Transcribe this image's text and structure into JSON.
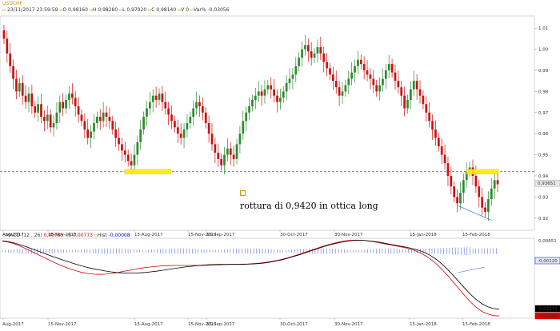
{
  "header": {
    "symbol": "USDCHF",
    "date_time": "23/11/2017 23:59:59",
    "open_label": "O",
    "open": "0,98160",
    "high_label": "H",
    "high": "0,98280",
    "low_label": "L",
    "low": "0,97920",
    "close_label": "C",
    "close": "0,98140",
    "vol_label": "V",
    "vol": "0",
    "varpct_label": "Var%",
    "varpct": "-0,03056"
  },
  "annotation": {
    "text": "rottura di 0,9420 in ottica long"
  },
  "macd_header": {
    "name": "MACD",
    "params": "(12 , 26)",
    "v1": "0,00785",
    "s_label": "S",
    "v2": "0,00773",
    "hist_label": "Hist",
    "v3": "-0,00008"
  },
  "price_axis": {
    "ticks": [
      "1,01",
      "1,00",
      "0,99",
      "0,98",
      "0,97",
      "0,96",
      "0,95",
      "0,94",
      "0,93",
      "0,92"
    ],
    "last_label": "0,93651"
  },
  "macd_axis": {
    "top": "0,00651",
    "hist_label": "-0,00120",
    "macd_label": "-0,02571",
    "signal_label": "-0,02890"
  },
  "x_axis": {
    "top_ticks": [
      "Aug-2017",
      "15-Nov-2017",
      "15-Aug-2017",
      "15-Nov-2017",
      "15-Sep-2017",
      "30-Oct-2017",
      "30-Nov-2017",
      "15-Jan-2018",
      "15-Feb-2018"
    ],
    "bottom_ticks": [
      "Aug-2017",
      "15-Nov-2017",
      "15-Aug-2017",
      "15-Nov-2017",
      "15-Sep-2017",
      "30-Oct-2017",
      "30-Nov-2017",
      "15-Jan-2018",
      "15-Feb-2018"
    ]
  },
  "chart_data": {
    "type": "candlestick",
    "series_name": "USDCHF",
    "ylim": [
      0.915,
      1.015
    ],
    "support_level": 0.942,
    "last_price": 0.93651,
    "close": [
      1.005,
      0.998,
      0.992,
      0.986,
      0.98,
      0.984,
      0.978,
      0.975,
      0.979,
      0.973,
      0.97,
      0.974,
      0.968,
      0.966,
      0.969,
      0.963,
      0.965,
      0.97,
      0.975,
      0.972,
      0.976,
      0.979,
      0.977,
      0.973,
      0.969,
      0.966,
      0.962,
      0.958,
      0.961,
      0.965,
      0.968,
      0.966,
      0.97,
      0.968,
      0.966,
      0.962,
      0.958,
      0.955,
      0.952,
      0.95,
      0.947,
      0.945,
      0.95,
      0.956,
      0.962,
      0.968,
      0.972,
      0.975,
      0.978,
      0.976,
      0.979,
      0.975,
      0.972,
      0.969,
      0.966,
      0.963,
      0.96,
      0.958,
      0.962,
      0.965,
      0.968,
      0.972,
      0.975,
      0.973,
      0.97,
      0.965,
      0.96,
      0.955,
      0.951,
      0.948,
      0.945,
      0.95,
      0.953,
      0.95,
      0.948,
      0.955,
      0.96,
      0.966,
      0.97,
      0.973,
      0.976,
      0.978,
      0.98,
      0.978,
      0.981,
      0.983,
      0.981,
      0.978,
      0.975,
      0.977,
      0.98,
      0.984,
      0.986,
      0.988,
      0.992,
      0.996,
      1.0,
      1.002,
      0.999,
      0.996,
      0.998,
      1.001,
      0.998,
      0.994,
      0.991,
      0.988,
      0.985,
      0.982,
      0.978,
      0.98,
      0.983,
      0.986,
      0.989,
      0.992,
      0.995,
      0.993,
      0.99,
      0.988,
      0.986,
      0.983,
      0.98,
      0.983,
      0.986,
      0.99,
      0.993,
      0.989,
      0.985,
      0.982,
      0.978,
      0.972,
      0.976,
      0.981,
      0.985,
      0.981,
      0.978,
      0.974,
      0.97,
      0.966,
      0.962,
      0.958,
      0.954,
      0.95,
      0.946,
      0.94,
      0.935,
      0.93,
      0.927,
      0.932,
      0.938,
      0.942,
      0.944,
      0.94,
      0.935,
      0.93,
      0.925,
      0.923,
      0.929,
      0.934,
      0.938,
      0.936
    ],
    "support_boxes": [
      {
        "start": 0.944,
        "end": 0.944
      }
    ],
    "macd": [
      0.0064,
      0.006,
      0.0054,
      0.0046,
      0.0037,
      0.0028,
      0.0018,
      0.0008,
      -0.0002,
      -0.0012,
      -0.0021,
      -0.003,
      -0.0039,
      -0.0047,
      -0.0055,
      -0.0062,
      -0.0068,
      -0.0073,
      -0.0078,
      -0.0082,
      -0.0085,
      -0.0087,
      -0.0088,
      -0.0088,
      -0.0087,
      -0.0085,
      -0.0082,
      -0.0079,
      -0.0075,
      -0.0071,
      -0.0067,
      -0.0063,
      -0.0059,
      -0.0056,
      -0.0053,
      -0.0051,
      -0.0049,
      -0.0048,
      -0.0047,
      -0.0047,
      -0.0047,
      -0.0047,
      -0.0047,
      -0.0046,
      -0.0045,
      -0.0043,
      -0.004,
      -0.0036,
      -0.0031,
      -0.0025,
      -0.0018,
      -0.001,
      -0.0002,
      0.0007,
      0.0016,
      0.0025,
      0.0034,
      0.0042,
      0.0049,
      0.0055,
      0.006,
      0.0064,
      0.0066,
      0.0066,
      0.0064,
      0.0061,
      0.0057,
      0.0052,
      0.0047,
      0.0042,
      0.0037,
      0.0032,
      0.0026,
      0.0018,
      0.0008,
      -0.0006,
      -0.0024,
      -0.0046,
      -0.0072,
      -0.01,
      -0.013,
      -0.016,
      -0.0188,
      -0.0212,
      -0.0232,
      -0.0246,
      -0.0254,
      -0.0257
    ],
    "signal": [
      0.0062,
      0.0058,
      0.005,
      0.004,
      0.0028,
      0.0015,
      0.0002,
      -0.0011,
      -0.0024,
      -0.0037,
      -0.0049,
      -0.006,
      -0.007,
      -0.0078,
      -0.0085,
      -0.009,
      -0.0093,
      -0.0094,
      -0.0093,
      -0.009,
      -0.0086,
      -0.0081,
      -0.0076,
      -0.0071,
      -0.0066,
      -0.0062,
      -0.0059,
      -0.0056,
      -0.0054,
      -0.0053,
      -0.0052,
      -0.0052,
      -0.0052,
      -0.0052,
      -0.0052,
      -0.0052,
      -0.0051,
      -0.005,
      -0.0049,
      -0.0048,
      -0.0047,
      -0.0047,
      -0.0046,
      -0.0045,
      -0.0043,
      -0.0041,
      -0.0038,
      -0.0034,
      -0.0029,
      -0.0023,
      -0.0016,
      -0.0008,
      0.0001,
      0.001,
      0.0019,
      0.0028,
      0.0037,
      0.0045,
      0.0052,
      0.0058,
      0.0063,
      0.0066,
      0.0067,
      0.0066,
      0.0063,
      0.0059,
      0.0054,
      0.0049,
      0.0044,
      0.0039,
      0.0034,
      0.0028,
      0.002,
      0.0009,
      -0.0005,
      -0.0023,
      -0.0045,
      -0.0071,
      -0.01,
      -0.0131,
      -0.0163,
      -0.0195,
      -0.0224,
      -0.0249,
      -0.0268,
      -0.028,
      -0.0287,
      -0.0289
    ],
    "macd_ylim": [
      -0.0292,
      0.0068
    ]
  },
  "colors": {
    "bull": "#2e8b2e",
    "bear": "#cc1111",
    "support_line": "#555555",
    "highlight": "#ffee00",
    "macd_line": "#000000",
    "signal_line": "#dd0000",
    "hist": "#4455cc",
    "accent_blue": "#0000ff"
  }
}
